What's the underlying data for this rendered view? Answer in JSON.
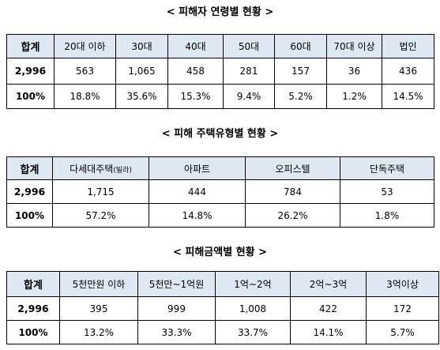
{
  "age": {
    "title": "< 피해자 연령별 현황 >",
    "headers": [
      "합계",
      "20대 이하",
      "30대",
      "40대",
      "50대",
      "60대",
      "70대 이상",
      "법인"
    ],
    "count_row": [
      "2,996",
      "563",
      "1,065",
      "458",
      "281",
      "157",
      "36",
      "436"
    ],
    "pct_row": [
      "100%",
      "18.8%",
      "35.6%",
      "15.3%",
      "9.4%",
      "5.2%",
      "1.2%",
      "14.5%"
    ]
  },
  "housing": {
    "title": "< 피해 주택유형별 현황 >",
    "headers": [
      "합계",
      "다세대주택",
      "(빌라)",
      "아파트",
      "오피스텔",
      "단독주택"
    ],
    "count_row": [
      "2,996",
      "1,715",
      "444",
      "784",
      "53"
    ],
    "pct_row": [
      "100%",
      "57.2%",
      "14.8%",
      "26.2%",
      "1.8%"
    ]
  },
  "amount": {
    "title": "< 피해금액별 현황 >",
    "headers": [
      "합계",
      "5천만원 이하",
      "5천만~1억원",
      "1억~2억",
      "2억~3억",
      "3억이상"
    ],
    "count_row": [
      "2,996",
      "395",
      "999",
      "1,008",
      "422",
      "172"
    ],
    "pct_row": [
      "100%",
      "13.2%",
      "33.3%",
      "33.7%",
      "14.1%",
      "5.7%"
    ]
  }
}
